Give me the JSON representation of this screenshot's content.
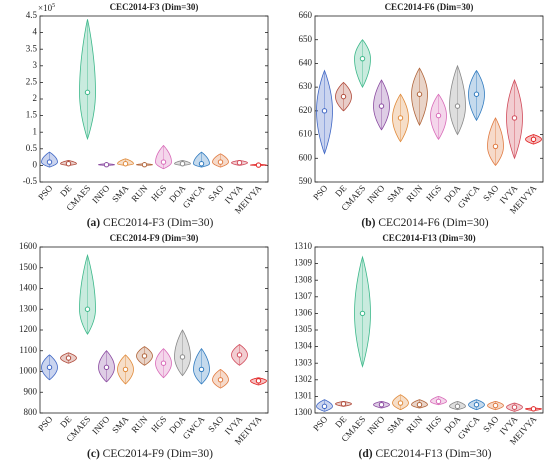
{
  "chart_data": [
    {
      "type": "violin",
      "title": "CEC2014-F3 (Dim=30)",
      "caption_label": "(a)",
      "caption": "CEC2014-F3 (Dim=30)",
      "y_scale_label": "×10",
      "y_scale_exponent": 5,
      "categories": [
        "PSO",
        "DE",
        "CMAES",
        "INFO",
        "SMA",
        "RUN",
        "HGS",
        "DOA",
        "GWCA",
        "SAO",
        "IVYA",
        "MEIVYA"
      ],
      "colors": [
        "#3f66c4",
        "#b04a3a",
        "#3cb88a",
        "#8a4aa0",
        "#e08a3a",
        "#b0643a",
        "#d86ab8",
        "#888888",
        "#2f7abf",
        "#e07a40",
        "#d04a5a",
        "#e02020"
      ],
      "min": [
        -0.05,
        0,
        0.8,
        0,
        0,
        0,
        -0.1,
        0,
        -0.05,
        -0.05,
        0,
        0
      ],
      "median": [
        0.1,
        0.05,
        2.2,
        0.02,
        0.05,
        0.02,
        0.1,
        0.05,
        0.05,
        0.1,
        0.08,
        0.01
      ],
      "max": [
        0.4,
        0.15,
        4.4,
        0.05,
        0.2,
        0.05,
        0.6,
        0.15,
        0.4,
        0.35,
        0.15,
        0.03
      ],
      "ylim": [
        -0.5,
        4.5
      ],
      "yticks": [
        -0.5,
        0,
        0.5,
        1,
        1.5,
        2,
        2.5,
        3,
        3.5,
        4,
        4.5
      ]
    },
    {
      "type": "violin",
      "title": "CEC2014-F6 (Dim=30)",
      "caption_label": "(b)",
      "caption": "CEC2014-F6 (Dim=30)",
      "categories": [
        "PSO",
        "DE",
        "CMAES",
        "INFO",
        "SMA",
        "RUN",
        "HGS",
        "DOA",
        "GWCA",
        "SAO",
        "IVYA",
        "MEIVYA"
      ],
      "colors": [
        "#3f66c4",
        "#b04a3a",
        "#3cb88a",
        "#8a4aa0",
        "#e08a3a",
        "#b0643a",
        "#d86ab8",
        "#888888",
        "#2f7abf",
        "#e07a40",
        "#d04a5a",
        "#e02020"
      ],
      "min": [
        602,
        620,
        630,
        612,
        607,
        614,
        608,
        610,
        616,
        597,
        600,
        606
      ],
      "median": [
        620,
        626,
        642,
        622,
        617,
        627,
        618,
        622,
        627,
        605,
        617,
        608
      ],
      "max": [
        637,
        632,
        650,
        633,
        627,
        638,
        627,
        639,
        637,
        617,
        633,
        610
      ],
      "ylim": [
        590,
        660
      ],
      "yticks": [
        590,
        600,
        610,
        620,
        630,
        640,
        650,
        660
      ]
    },
    {
      "type": "violin",
      "title": "CEC2014-F9 (Dim=30)",
      "caption_label": "(c)",
      "caption": "CEC2014-F9 (Dim=30)",
      "categories": [
        "PSO",
        "DE",
        "CMAES",
        "INFO",
        "SMA",
        "RUN",
        "HGS",
        "DOA",
        "GWCA",
        "SAO",
        "IVYA",
        "MEIVYA"
      ],
      "colors": [
        "#3f66c4",
        "#b04a3a",
        "#3cb88a",
        "#8a4aa0",
        "#e08a3a",
        "#b0643a",
        "#d86ab8",
        "#888888",
        "#2f7abf",
        "#e07a40",
        "#d04a5a",
        "#e02020"
      ],
      "min": [
        960,
        1040,
        1180,
        950,
        940,
        1030,
        970,
        980,
        940,
        920,
        1030,
        935
      ],
      "median": [
        1020,
        1065,
        1300,
        1020,
        1010,
        1075,
        1040,
        1070,
        1010,
        960,
        1080,
        955
      ],
      "max": [
        1080,
        1090,
        1560,
        1100,
        1080,
        1120,
        1110,
        1200,
        1110,
        1010,
        1130,
        970
      ],
      "ylim": [
        800,
        1600
      ],
      "yticks": [
        800,
        900,
        1000,
        1100,
        1200,
        1300,
        1400,
        1500,
        1600
      ]
    },
    {
      "type": "violin",
      "title": "CEC2014-F13 (Dim=30)",
      "caption_label": "(d)",
      "caption": "CEC2014-F13 (Dim=30)",
      "categories": [
        "PSO",
        "DE",
        "CMAES",
        "INFO",
        "SMA",
        "RUN",
        "HGS",
        "DOA",
        "GWCA",
        "SAO",
        "IVYA",
        "MEIVYA"
      ],
      "colors": [
        "#3f66c4",
        "#b04a3a",
        "#3cb88a",
        "#8a4aa0",
        "#e08a3a",
        "#b0643a",
        "#d86ab8",
        "#888888",
        "#2f7abf",
        "#e07a40",
        "#d04a5a",
        "#e02020"
      ],
      "min": [
        1300.1,
        1300.4,
        1302.8,
        1300.3,
        1300.2,
        1300.3,
        1300.5,
        1300.2,
        1300.2,
        1300.2,
        1300.1,
        1300.15
      ],
      "median": [
        1300.4,
        1300.55,
        1306,
        1300.5,
        1300.6,
        1300.5,
        1300.7,
        1300.4,
        1300.5,
        1300.45,
        1300.35,
        1300.25
      ],
      "max": [
        1300.8,
        1300.7,
        1309.4,
        1300.7,
        1301.1,
        1300.8,
        1301,
        1300.7,
        1300.8,
        1300.7,
        1300.6,
        1300.3
      ],
      "ylim": [
        1300,
        1310
      ],
      "yticks": [
        1300,
        1301,
        1302,
        1303,
        1304,
        1305,
        1306,
        1307,
        1308,
        1309,
        1310
      ]
    }
  ]
}
